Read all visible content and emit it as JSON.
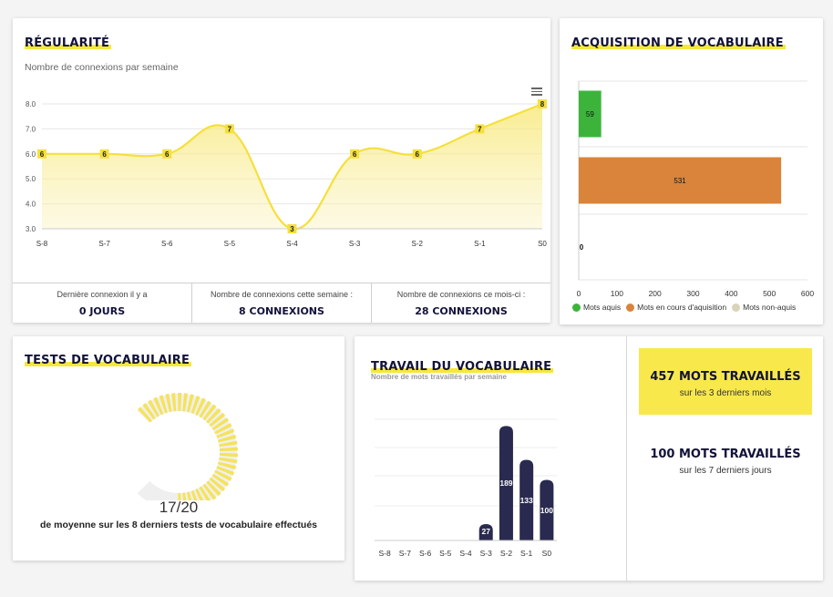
{
  "regularite": {
    "title": "RÉGULARITÉ",
    "subtitle": "Nombre de connexions par semaine",
    "menu_icon": "hamburger-menu-icon",
    "stats": [
      {
        "label": "Dernière connexion il y a",
        "value": "0 JOURS"
      },
      {
        "label": "Nombre de connexions cette semaine :",
        "value": "8 CONNEXIONS"
      },
      {
        "label": "Nombre de connexions ce mois-ci :",
        "value": "28 CONNEXIONS"
      }
    ]
  },
  "acquisition": {
    "title": "ACQUISITION DE VOCABULAIRE",
    "legend": [
      {
        "name": "Mots aquis",
        "color": "#3cb43c"
      },
      {
        "name": "Mots en cours d'aquisition",
        "color": "#d9843a"
      },
      {
        "name": "Mots non-aquis",
        "color": "#d9d3b9"
      }
    ]
  },
  "tests": {
    "title": "TESTS DE VOCABULAIRE",
    "score": "17/20",
    "score_value": 17,
    "score_max": 20,
    "description": "de moyenne sur les 8 derniers tests de vocabulaire effectués"
  },
  "travail": {
    "title": "TRAVAIL DU VOCABULAIRE",
    "subtitle": "Nombre de mots travaillés par semaine",
    "box1": {
      "big": "457 MOTS TRAVAILLÉS",
      "small": "sur les 3 derniers mois"
    },
    "box2": {
      "big": "100 MOTS TRAVAILLÉS",
      "small": "sur les 7 derniers jours"
    }
  },
  "colors": {
    "accent": "#f5e83c",
    "navy": "#2a2a50"
  },
  "chart_data": [
    {
      "type": "area",
      "categories": [
        "S-8",
        "S-7",
        "S-6",
        "S-5",
        "S-4",
        "S-3",
        "S-2",
        "S-1",
        "S0"
      ],
      "values": [
        6,
        6,
        6,
        7,
        3,
        6,
        6,
        7,
        8
      ],
      "ylim": [
        3,
        8
      ],
      "yticks": [
        "3.0",
        "4.0",
        "5.0",
        "6.0",
        "7.0",
        "8.0"
      ],
      "grid": true,
      "color": "#f5e03c"
    },
    {
      "type": "bar",
      "orientation": "horizontal",
      "categories": [
        "Mots aquis",
        "Mots en cours d'aquisition",
        "Mots non-aquis"
      ],
      "values": [
        59,
        531,
        0
      ],
      "xlim": [
        0,
        600
      ],
      "xticks": [
        "0",
        "100",
        "200",
        "300",
        "400",
        "500",
        "600"
      ],
      "colors": [
        "#3cb43c",
        "#d9843a",
        "#d9d3b9"
      ],
      "legend": "bottom"
    },
    {
      "type": "bar",
      "categories": [
        "S-8",
        "S-7",
        "S-6",
        "S-5",
        "S-4",
        "S-3",
        "S-2",
        "S-1",
        "S0"
      ],
      "values": [
        0,
        0,
        0,
        0,
        0,
        27,
        189,
        133,
        100
      ],
      "ylim": [
        0,
        200
      ],
      "color": "#2a2a50"
    }
  ]
}
